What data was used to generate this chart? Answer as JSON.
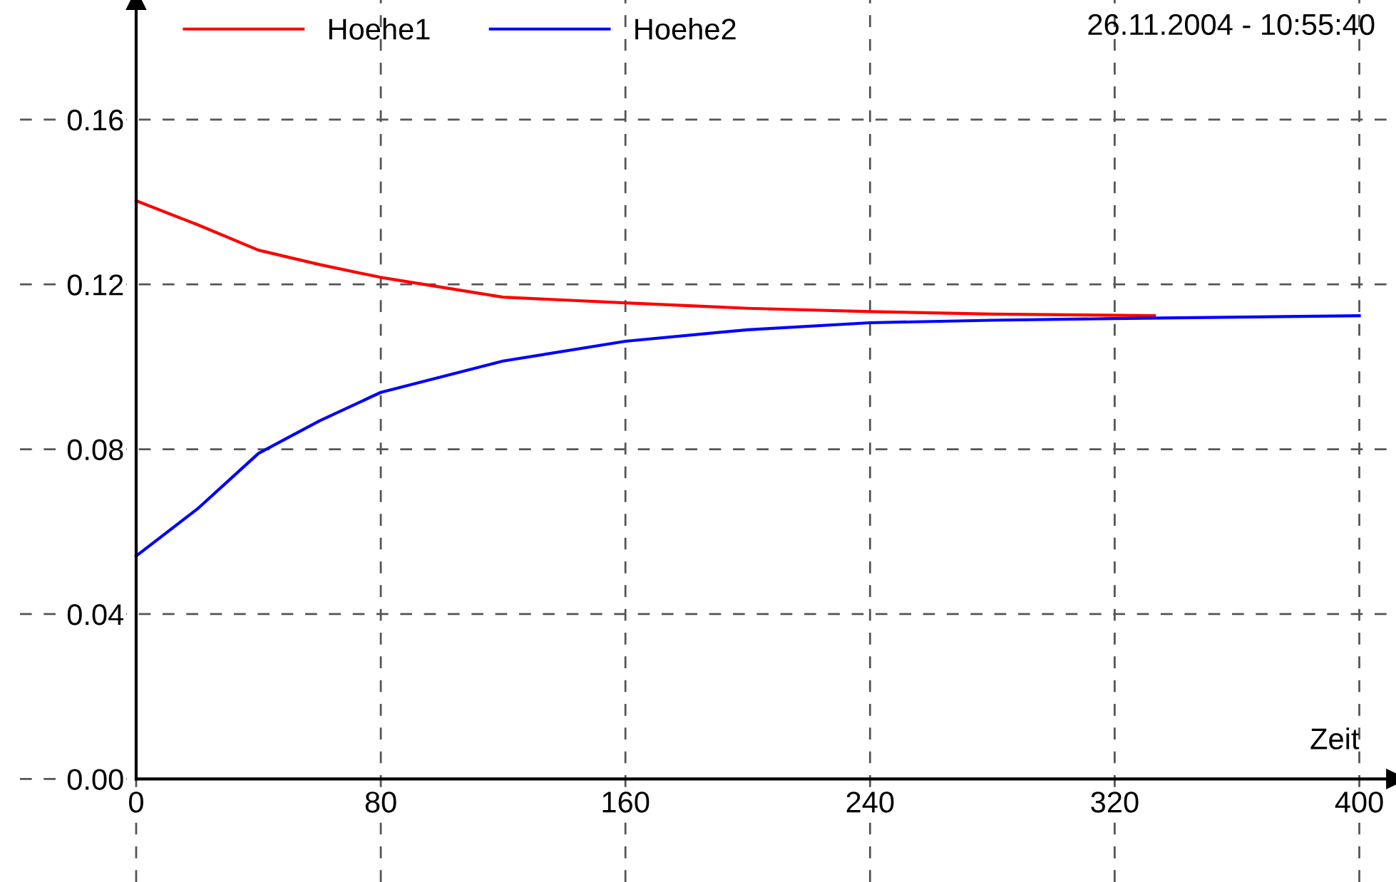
{
  "chart_data": {
    "type": "line",
    "xlabel": "Zeit",
    "annotations": [
      "26.11.2004 - 10:55:40"
    ],
    "xlim": [
      -38,
      412
    ],
    "ylim": [
      -0.025,
      0.189
    ],
    "xticks": [
      0,
      80,
      160,
      240,
      320,
      400
    ],
    "yticks": [
      {
        "value": 0,
        "label": "0.00"
      },
      0.04,
      0.08,
      0.12,
      0.16
    ],
    "grid": true,
    "legend": "top left",
    "marker": "none",
    "line_style": "solid",
    "series": [
      {
        "name": "Hoehe1",
        "color": "#ff0000",
        "x": [
          0,
          20,
          40,
          60,
          80,
          120,
          160,
          200,
          240,
          280,
          333
        ],
        "values": [
          0.1403,
          0.1345,
          0.1283,
          0.1248,
          0.1217,
          0.1169,
          0.1155,
          0.1142,
          0.1134,
          0.1128,
          0.1124
        ]
      },
      {
        "name": "Hoehe2",
        "color": "#0000ff",
        "x": [
          0,
          20,
          40,
          60,
          80,
          120,
          160,
          200,
          240,
          280,
          320,
          400
        ],
        "values": [
          0.0541,
          0.0655,
          0.079,
          0.0869,
          0.0938,
          0.1014,
          0.1062,
          0.109,
          0.1107,
          0.1113,
          0.1117,
          0.1124
        ]
      }
    ]
  }
}
